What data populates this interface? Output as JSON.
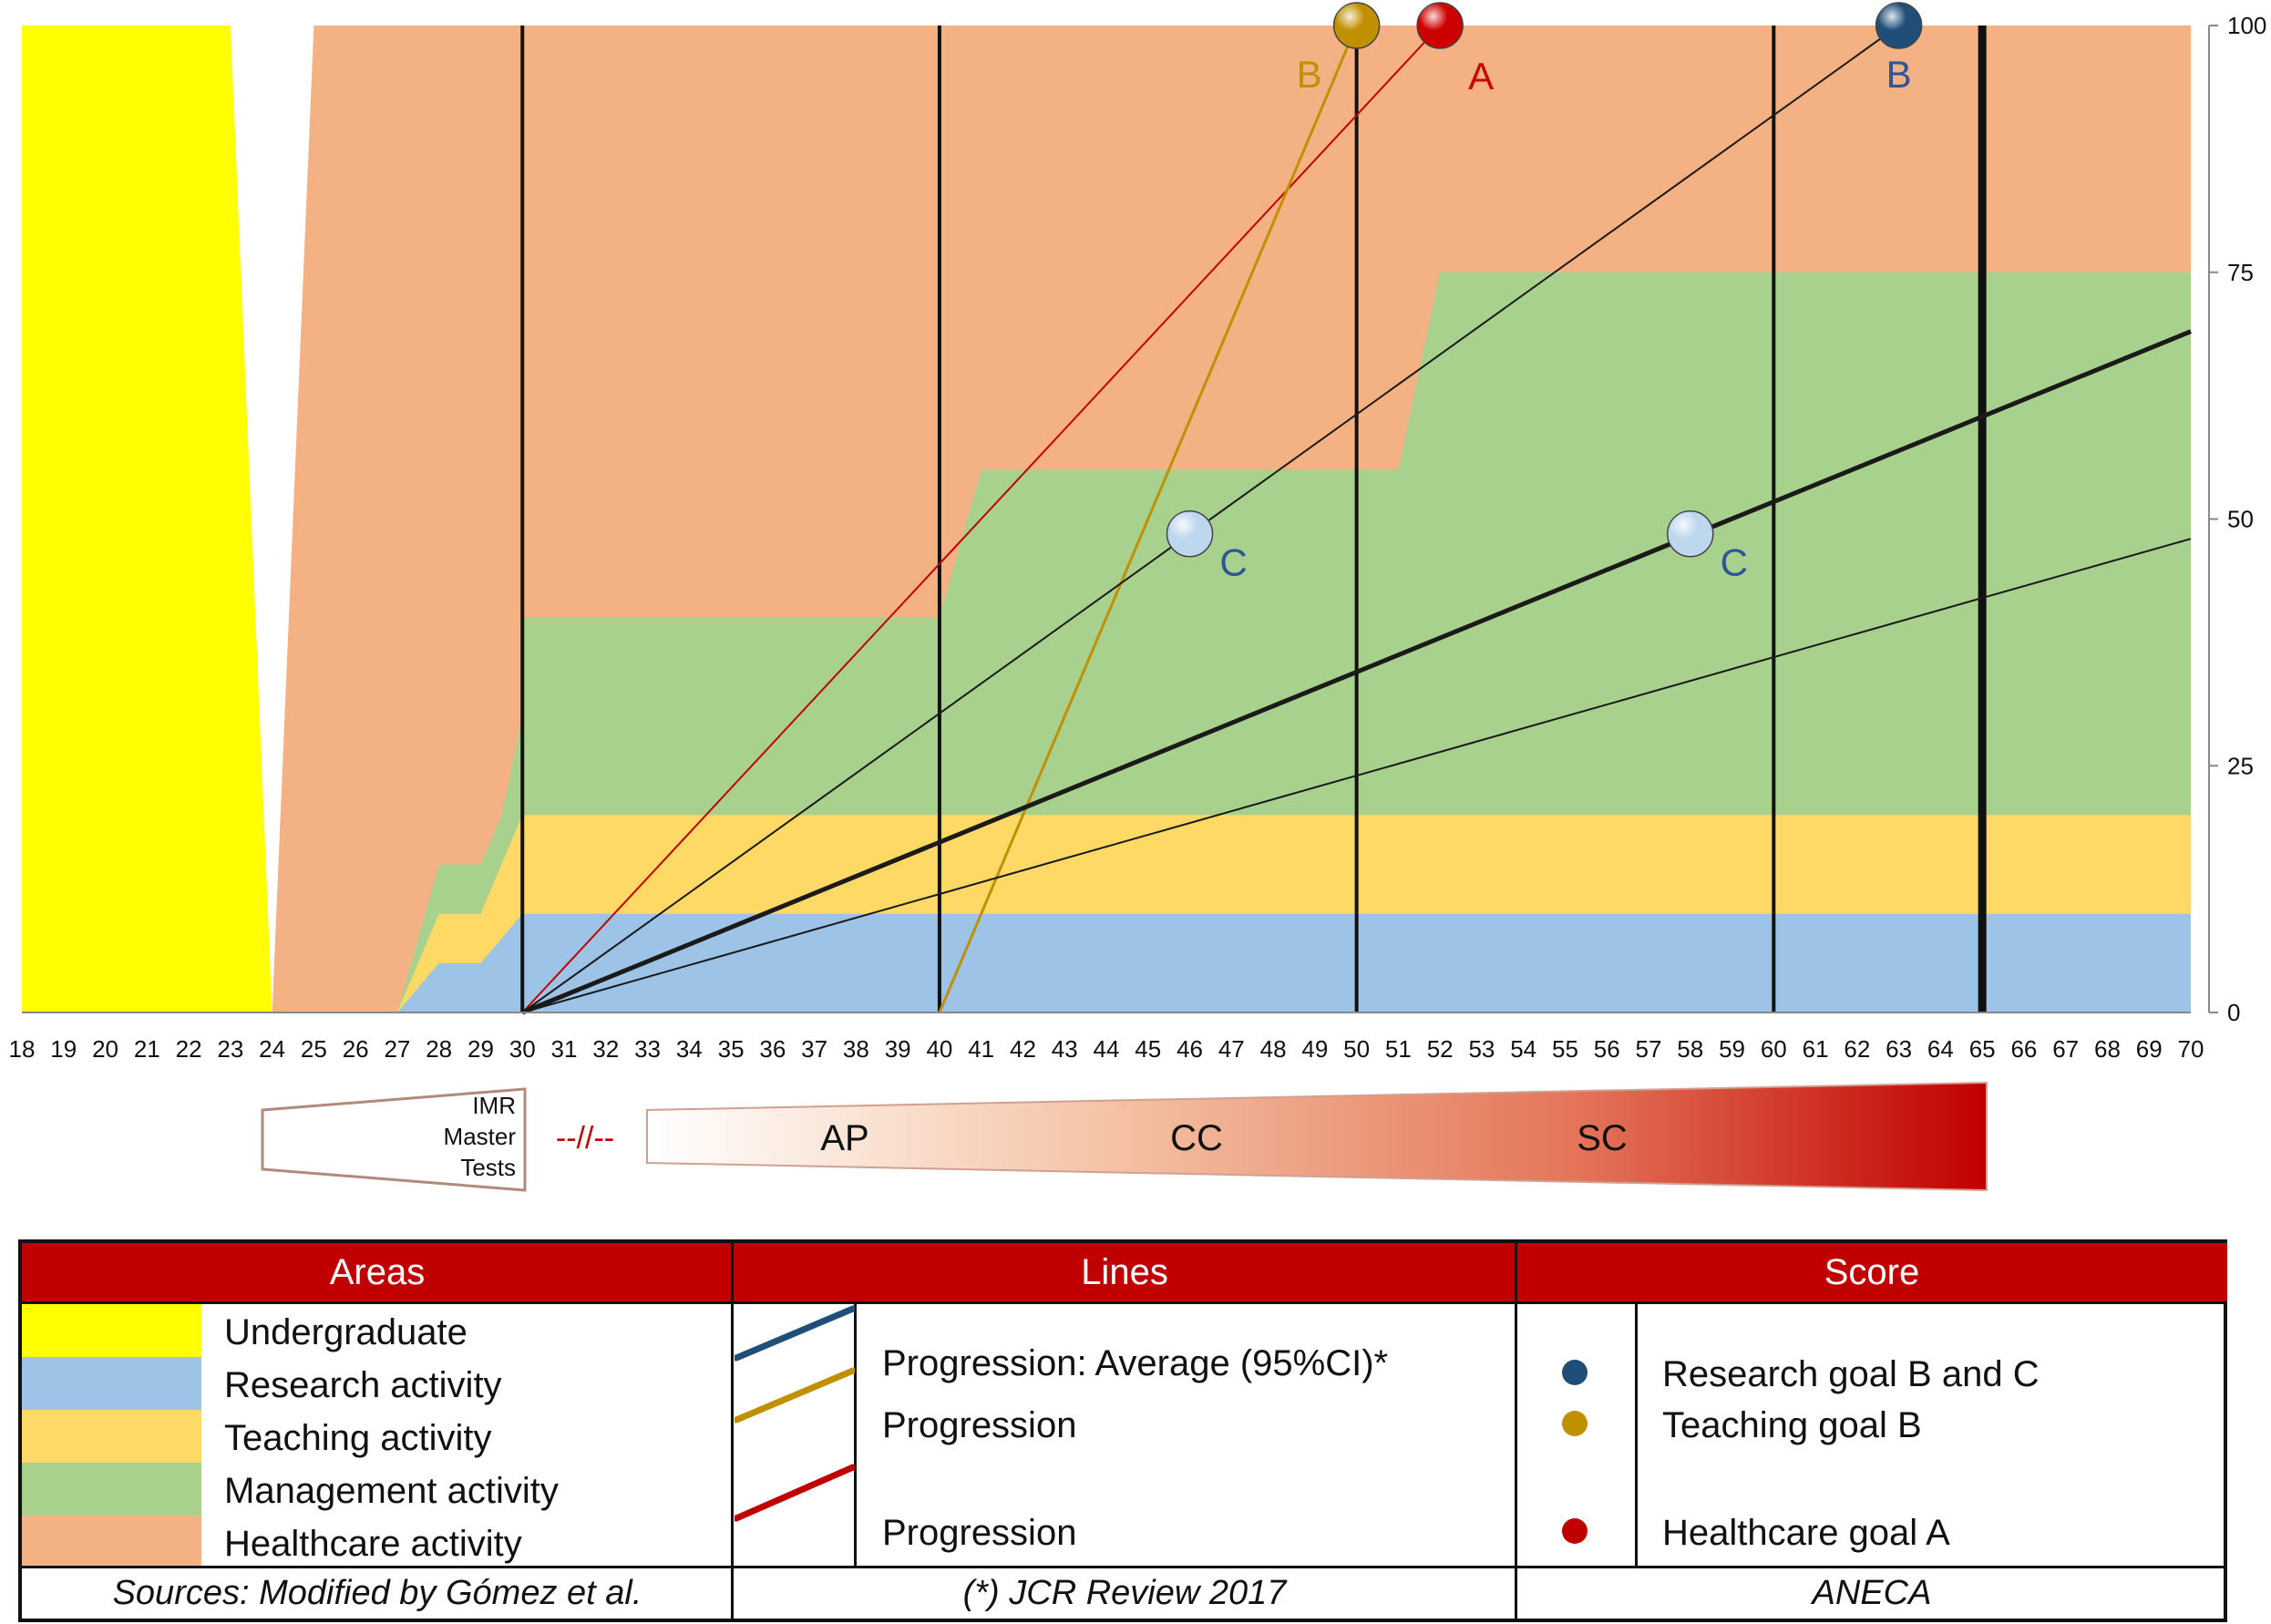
{
  "chart_data": {
    "type": "area",
    "x_ticks": [
      18,
      19,
      20,
      21,
      22,
      23,
      24,
      25,
      26,
      27,
      28,
      29,
      30,
      31,
      32,
      33,
      34,
      35,
      36,
      37,
      38,
      39,
      40,
      41,
      42,
      43,
      44,
      45,
      46,
      47,
      48,
      49,
      50,
      51,
      52,
      53,
      54,
      55,
      56,
      57,
      58,
      59,
      60,
      61,
      62,
      63,
      64,
      65,
      66,
      67,
      68,
      69,
      70
    ],
    "y_ticks": [
      0,
      25,
      50,
      75,
      100
    ],
    "xlim": [
      18,
      70
    ],
    "ylim": [
      0,
      100
    ],
    "areas": [
      {
        "name": "Undergraduate",
        "color": "#ffff00",
        "polygon": [
          [
            18,
            0
          ],
          [
            18,
            100
          ],
          [
            23,
            100
          ],
          [
            24,
            0
          ]
        ]
      },
      {
        "name": "Healthcare activity",
        "color": "#f4b183",
        "polygon": [
          [
            24,
            0
          ],
          [
            25,
            100
          ],
          [
            70,
            100
          ],
          [
            70,
            0
          ]
        ]
      },
      {
        "name": "Management activity",
        "color": "#a9d18e",
        "polygon": [
          [
            27,
            0
          ],
          [
            28,
            15
          ],
          [
            29,
            15
          ],
          [
            29.5,
            20
          ],
          [
            30,
            30
          ],
          [
            30,
            40
          ],
          [
            40,
            40
          ],
          [
            41,
            55
          ],
          [
            51,
            55
          ],
          [
            52,
            75
          ],
          [
            70,
            75
          ],
          [
            70,
            0
          ]
        ]
      },
      {
        "name": "Teaching activity",
        "color": "#ffd966",
        "polygon": [
          [
            27,
            0
          ],
          [
            28,
            10
          ],
          [
            29,
            10
          ],
          [
            30,
            20
          ],
          [
            70,
            20
          ],
          [
            70,
            0
          ]
        ]
      },
      {
        "name": "Research activity",
        "color": "#9dc3e6",
        "polygon": [
          [
            27,
            0
          ],
          [
            28,
            5
          ],
          [
            29,
            5
          ],
          [
            30,
            10
          ],
          [
            70,
            10
          ],
          [
            70,
            0
          ]
        ]
      }
    ],
    "vertical_lines": [
      {
        "x": 30,
        "weight": "normal"
      },
      {
        "x": 40,
        "weight": "normal"
      },
      {
        "x": 50,
        "weight": "normal"
      },
      {
        "x": 60,
        "weight": "normal"
      },
      {
        "x": 65,
        "weight": "bold"
      }
    ],
    "series": [
      {
        "name": "Progression",
        "color": "#c00000",
        "width": 2,
        "points": [
          [
            30,
            0
          ],
          [
            52,
            100
          ]
        ]
      },
      {
        "name": "Progression",
        "color": "#c09000",
        "width": 3,
        "points": [
          [
            40,
            0
          ],
          [
            50,
            100
          ]
        ]
      },
      {
        "color": "#1a1a1a",
        "width": 2,
        "points": [
          [
            30,
            0
          ],
          [
            63,
            100
          ]
        ]
      },
      {
        "color": "#1a1a1a",
        "width": 5,
        "points": [
          [
            30,
            0
          ],
          [
            70,
            69
          ]
        ]
      },
      {
        "color": "#1a1a1a",
        "width": 2,
        "points": [
          [
            30,
            0
          ],
          [
            70,
            48
          ]
        ]
      }
    ],
    "markers": [
      {
        "x": 50,
        "y": 100,
        "color": "#c09000",
        "label": "B",
        "label_color": "#c09000",
        "label_side": "left"
      },
      {
        "x": 52,
        "y": 100,
        "color": "#cc0000",
        "label": "A",
        "label_color": "#cc0000",
        "label_side": "right"
      },
      {
        "x": 63,
        "y": 100,
        "color": "#1f4e79",
        "label": "B",
        "label_color": "#2e5597",
        "label_side": "below"
      },
      {
        "x": 46,
        "y": 48.5,
        "color": "#bdd7ee",
        "label": "C",
        "label_color": "#2e5597",
        "label_side": "right"
      },
      {
        "x": 58,
        "y": 48.5,
        "color": "#bdd7ee",
        "label": "C",
        "label_color": "#2e5597",
        "label_side": "right"
      }
    ]
  },
  "stages": {
    "left": [
      "IMR",
      "Master",
      "Tests"
    ],
    "separator": "--//--",
    "labels": [
      "AP",
      "CC",
      "SC"
    ]
  },
  "legend": {
    "headers": {
      "areas": "Areas",
      "lines": "Lines",
      "score": "Score"
    },
    "areas": [
      {
        "label": "Undergraduate",
        "color": "#ffff00"
      },
      {
        "label": "Research activity",
        "color": "#9dc3e6"
      },
      {
        "label": "Teaching activity",
        "color": "#ffd966"
      },
      {
        "label": "Management activity",
        "color": "#a9d18e"
      },
      {
        "label": "Healthcare activity",
        "color": "#f4b183"
      }
    ],
    "lines": [
      {
        "label": "Progression: Average (95%CI)*",
        "color": "#1f4e79"
      },
      {
        "label": "Progression",
        "color": "#c09000"
      },
      {
        "label": "Progression",
        "color": "#c00000"
      }
    ],
    "score": [
      {
        "label": "Research goal B and C",
        "color": "#1f4e79"
      },
      {
        "label": "Teaching goal B",
        "color": "#c09000"
      },
      {
        "label": "Healthcare goal A",
        "color": "#c00000"
      }
    ],
    "footer": {
      "areas": "Sources: Modified by Gómez et al.",
      "lines": "(*) JCR Review 2017",
      "score": "ANECA"
    }
  }
}
